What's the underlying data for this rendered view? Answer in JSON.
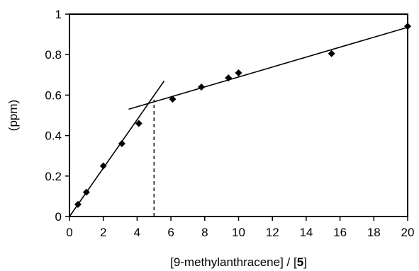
{
  "chart_data": {
    "type": "scatter",
    "title": "",
    "xlabel_prefix": "[9-methylanthracene] / [",
    "xlabel_bold": "5",
    "xlabel_suffix": "]",
    "ylabel": "(ppm)",
    "xlim": [
      0,
      20
    ],
    "ylim": [
      0,
      1
    ],
    "xticks": [
      0,
      2,
      4,
      6,
      8,
      10,
      12,
      14,
      16,
      18,
      20
    ],
    "yticks": [
      0,
      0.2,
      0.4,
      0.6,
      0.8,
      1
    ],
    "xtick_labels": [
      "0",
      "2",
      "4",
      "6",
      "8",
      "10",
      "12",
      "14",
      "16",
      "18",
      "20"
    ],
    "ytick_labels": [
      "0",
      "0.2",
      "0.4",
      "0.6",
      "0.8",
      "1"
    ],
    "grid": false,
    "marker": "diamond",
    "points": [
      {
        "x": 0.5,
        "y": 0.06
      },
      {
        "x": 1.0,
        "y": 0.12
      },
      {
        "x": 2.0,
        "y": 0.25
      },
      {
        "x": 3.1,
        "y": 0.36
      },
      {
        "x": 4.1,
        "y": 0.46
      },
      {
        "x": 6.1,
        "y": 0.58
      },
      {
        "x": 7.8,
        "y": 0.64
      },
      {
        "x": 9.4,
        "y": 0.685
      },
      {
        "x": 10.0,
        "y": 0.71
      },
      {
        "x": 15.5,
        "y": 0.805
      },
      {
        "x": 20.0,
        "y": 0.94
      }
    ],
    "fit_lines": [
      {
        "x": [
          0,
          5.6
        ],
        "y": [
          0,
          0.67
        ]
      },
      {
        "x": [
          3.5,
          20
        ],
        "y": [
          0.53,
          0.935
        ]
      }
    ],
    "intersection_marker": {
      "x": 5.0,
      "y_from": 0,
      "y_to": 0.578,
      "style": "dashed"
    },
    "colors": {
      "marks": "#000000",
      "background": "#ffffff"
    }
  }
}
